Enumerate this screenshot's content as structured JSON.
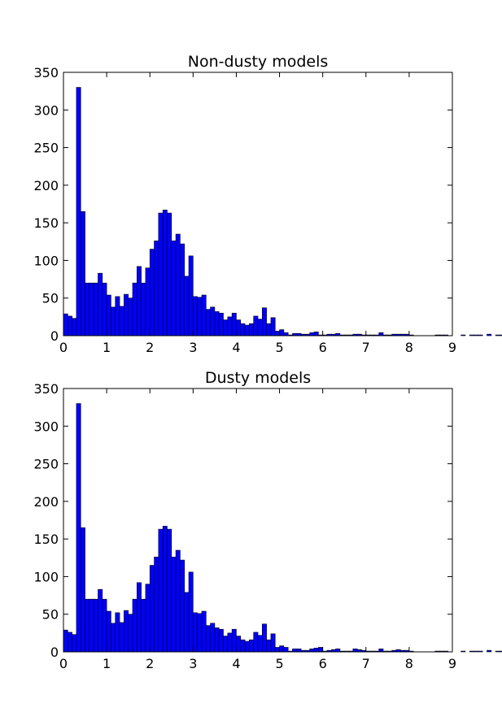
{
  "chart_data": [
    {
      "type": "bar",
      "title": "Non-dusty models",
      "xlabel": "",
      "ylabel": "",
      "xlim": [
        0,
        9
      ],
      "ylim": [
        0,
        350
      ],
      "xticks": [
        "0",
        "1",
        "2",
        "3",
        "4",
        "5",
        "6",
        "7",
        "8",
        "9"
      ],
      "yticks": [
        "0",
        "50",
        "100",
        "150",
        "200",
        "250",
        "300",
        "350"
      ],
      "bin_width": 0.1,
      "x_start": 0.0,
      "values": [
        29,
        26,
        23,
        330,
        165,
        70,
        70,
        70,
        83,
        70,
        54,
        38,
        52,
        39,
        55,
        50,
        70,
        92,
        70,
        90,
        115,
        126,
        163,
        167,
        163,
        126,
        135,
        122,
        79,
        106,
        52,
        51,
        54,
        35,
        38,
        32,
        30,
        21,
        25,
        30,
        21,
        16,
        14,
        16,
        26,
        22,
        37,
        16,
        24,
        6,
        8,
        4,
        1,
        3,
        3,
        2,
        2,
        4,
        5,
        1,
        1,
        2,
        2,
        3,
        1,
        1,
        1,
        2,
        2,
        1,
        1,
        1,
        1,
        4,
        1,
        1,
        2,
        2,
        2,
        2,
        1,
        0,
        0,
        0,
        0,
        0,
        1,
        1,
        1,
        0,
        0,
        0,
        1,
        0,
        1,
        1,
        1,
        0,
        2,
        0,
        1,
        1,
        0,
        0,
        0
      ]
    },
    {
      "type": "bar",
      "title": "Dusty models",
      "xlabel": "",
      "ylabel": "",
      "xlim": [
        0,
        9
      ],
      "ylim": [
        0,
        350
      ],
      "xticks": [
        "0",
        "1",
        "2",
        "3",
        "4",
        "5",
        "6",
        "7",
        "8",
        "9"
      ],
      "yticks": [
        "0",
        "50",
        "100",
        "150",
        "200",
        "250",
        "300",
        "350"
      ],
      "bin_width": 0.1,
      "x_start": 0.0,
      "values": [
        29,
        26,
        23,
        330,
        165,
        70,
        70,
        70,
        83,
        70,
        54,
        38,
        52,
        39,
        55,
        50,
        70,
        92,
        70,
        90,
        115,
        126,
        163,
        167,
        163,
        126,
        135,
        122,
        79,
        106,
        52,
        51,
        54,
        35,
        38,
        32,
        30,
        21,
        25,
        30,
        21,
        16,
        14,
        16,
        26,
        22,
        37,
        16,
        24,
        6,
        8,
        6,
        1,
        4,
        4,
        2,
        2,
        4,
        5,
        6,
        1,
        2,
        3,
        4,
        1,
        1,
        1,
        4,
        3,
        2,
        1,
        1,
        1,
        4,
        1,
        1,
        2,
        3,
        2,
        2,
        1,
        0,
        0,
        0,
        0,
        0,
        1,
        1,
        1,
        0,
        0,
        0,
        1,
        0,
        1,
        1,
        1,
        0,
        2,
        0,
        1,
        1,
        0,
        0,
        0
      ]
    }
  ],
  "colors": {
    "bar_fill": "#0000ff",
    "bar_edge": "#000000",
    "axes": "#000000",
    "background": "#ffffff"
  }
}
